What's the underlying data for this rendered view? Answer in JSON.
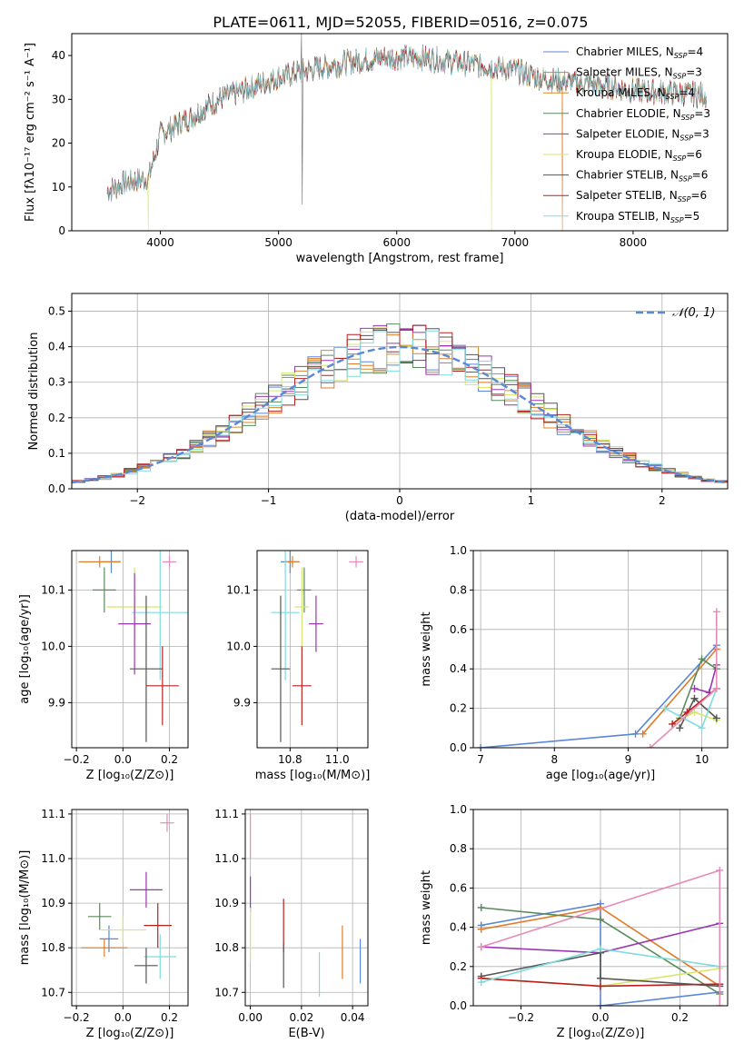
{
  "figure_title": "PLATE=0611, MJD=52055, FIBERID=0516, z=0.075",
  "colors": {
    "Chabrier MILES": "#5b87d6",
    "Salpeter MILES": "#e07b2a",
    "Kroupa MILES": "#d68a2a",
    "Chabrier ELODIE": "#5a8a5a",
    "Salpeter ELODIE": "#9a37b0",
    "Kroupa ELODIE": "#d8e66a",
    "Chabrier STELIB": "#555555",
    "Salpeter STELIB": "#b82020",
    "Kroupa STELIB": "#7fdbe0",
    "extra": "#e88ab8"
  },
  "chart_data": [
    {
      "type": "line",
      "id": "spectrum",
      "title": "PLATE=0611, MJD=52055, FIBERID=0516, z=0.075",
      "xlabel": "wavelength [Angstrom, rest frame]",
      "ylabel": "Flux [fλ10⁻¹⁷ erg cm⁻² s⁻¹ A⁻¹]",
      "xlim": [
        3250,
        8800
      ],
      "ylim": [
        0,
        45
      ],
      "xticks": [
        4000,
        5000,
        6000,
        7000,
        8000
      ],
      "yticks": [
        0,
        10,
        20,
        30,
        40
      ],
      "grid": false,
      "legend_position": "top-right",
      "series": [
        {
          "name": "Chabrier MILES, N_SSP=4"
        },
        {
          "name": "Salpeter MILES, N_SSP=3"
        },
        {
          "name": "Kroupa MILES, N_SSP=4"
        },
        {
          "name": "Chabrier ELODIE, N_SSP=3"
        },
        {
          "name": "Salpeter ELODIE, N_SSP=3"
        },
        {
          "name": "Kroupa ELODIE, N_SSP=6"
        },
        {
          "name": "Chabrier STELIB, N_SSP=6"
        },
        {
          "name": "Salpeter STELIB, N_SSP=6"
        },
        {
          "name": "Kroupa STELIB, N_SSP=5"
        }
      ],
      "continuum_x": [
        3550,
        3700,
        3900,
        4000,
        4200,
        4500,
        4800,
        5000,
        5300,
        5600,
        5900,
        6200,
        6500,
        6800,
        7000,
        7200,
        7400,
        7600,
        7800,
        8000,
        8300,
        8600
      ],
      "continuum_y": [
        9,
        11,
        12,
        22,
        25,
        30,
        33,
        35,
        37,
        38.5,
        39.5,
        39.5,
        38.5,
        37.5,
        36.5,
        35,
        34,
        33.5,
        33,
        32,
        31.5,
        31
      ]
    },
    {
      "type": "bar",
      "id": "residual-histogram",
      "xlabel": "(data-model)/error",
      "ylabel": "Normed distribution",
      "xlim": [
        -2.5,
        2.5
      ],
      "ylim": [
        0,
        0.55
      ],
      "xticks": [
        -2,
        -1,
        0,
        1,
        2
      ],
      "yticks": [
        0.0,
        0.1,
        0.2,
        0.3,
        0.4,
        0.5
      ],
      "grid": true,
      "legend_position": "top-right",
      "legend": [
        "𝒩(0, 1)"
      ],
      "bin_width": 0.1,
      "bin_start": -2.5,
      "n_bins": 50
    },
    {
      "type": "scatter",
      "id": "age-vs-Z",
      "xlabel": "Z [log₁₀(Z/Z⊙)]",
      "ylabel": "age  [log₁₀(age/yr)]",
      "xlim": [
        -0.22,
        0.28
      ],
      "ylim": [
        9.82,
        10.17
      ],
      "xticks": [
        -0.2,
        0.0,
        0.2
      ],
      "yticks": [
        9.9,
        10.0,
        10.1
      ],
      "grid": true,
      "points": [
        {
          "model": "Chabrier MILES",
          "x": -0.05,
          "y": 10.15,
          "xerr": 0.04,
          "yerr": 0.02
        },
        {
          "model": "Salpeter MILES",
          "x": -0.1,
          "y": 10.15,
          "xerr": 0.09,
          "yerr": 0.01
        },
        {
          "model": "Chabrier ELODIE",
          "x": -0.08,
          "y": 10.1,
          "xerr": 0.05,
          "yerr": 0.04
        },
        {
          "model": "Kroupa ELODIE",
          "x": 0.05,
          "y": 10.07,
          "xerr": 0.12,
          "yerr": 0.07
        },
        {
          "model": "Kroupa STELIB",
          "x": 0.16,
          "y": 10.06,
          "xerr": 0.12,
          "yerr": 0.12
        },
        {
          "model": "Salpeter ELODIE",
          "x": 0.05,
          "y": 10.04,
          "xerr": 0.07,
          "yerr": 0.09
        },
        {
          "model": "Chabrier STELIB",
          "x": 0.1,
          "y": 9.96,
          "xerr": 0.07,
          "yerr": 0.13
        },
        {
          "model": "Salpeter STELIB",
          "x": 0.17,
          "y": 9.93,
          "xerr": 0.07,
          "yerr": 0.07
        },
        {
          "model": "extra",
          "x": 0.2,
          "y": 10.15,
          "xerr": 0.03,
          "yerr": 0.01
        }
      ]
    },
    {
      "type": "scatter",
      "id": "age-vs-mass",
      "xlabel": "mass [log₁₀(M/M⊙)]",
      "ylabel": "",
      "xlim": [
        10.66,
        11.13
      ],
      "ylim": [
        9.82,
        10.17
      ],
      "xticks": [
        10.8,
        11.0
      ],
      "yticks": [
        9.9,
        10.0,
        10.1
      ],
      "grid": true,
      "points": [
        {
          "model": "Chabrier MILES",
          "x": 10.8,
          "y": 10.15,
          "xerr": 0.04,
          "yerr": 0.02
        },
        {
          "model": "Salpeter MILES",
          "x": 10.81,
          "y": 10.15,
          "xerr": 0.03,
          "yerr": 0.01
        },
        {
          "model": "Chabrier ELODIE",
          "x": 10.86,
          "y": 10.1,
          "xerr": 0.03,
          "yerr": 0.04
        },
        {
          "model": "Kroupa ELODIE",
          "x": 10.85,
          "y": 10.07,
          "xerr": 0.03,
          "yerr": 0.07
        },
        {
          "model": "Kroupa STELIB",
          "x": 10.78,
          "y": 10.06,
          "xerr": 0.06,
          "yerr": 0.12
        },
        {
          "model": "Salpeter ELODIE",
          "x": 10.91,
          "y": 10.04,
          "xerr": 0.03,
          "yerr": 0.05
        },
        {
          "model": "Chabrier STELIB",
          "x": 10.76,
          "y": 9.96,
          "xerr": 0.04,
          "yerr": 0.13
        },
        {
          "model": "Salpeter STELIB",
          "x": 10.85,
          "y": 9.93,
          "xerr": 0.04,
          "yerr": 0.07
        },
        {
          "model": "extra",
          "x": 11.08,
          "y": 10.15,
          "xerr": 0.03,
          "yerr": 0.01
        }
      ]
    },
    {
      "type": "line",
      "id": "mass-weight-vs-age",
      "xlabel": "age  [log₁₀(age/yr)]",
      "ylabel": "mass weight",
      "xlim": [
        6.9,
        10.35
      ],
      "ylim": [
        0,
        1
      ],
      "xticks": [
        7,
        8,
        9,
        10
      ],
      "yticks": [
        0.0,
        0.2,
        0.4,
        0.6,
        0.8,
        1.0
      ],
      "grid": true,
      "series": [
        {
          "model": "Chabrier MILES",
          "x": [
            7.0,
            9.1,
            10.2
          ],
          "y": [
            0.0,
            0.07,
            0.52
          ]
        },
        {
          "model": "Salpeter MILES",
          "x": [
            9.2,
            10.2
          ],
          "y": [
            0.07,
            0.5
          ]
        },
        {
          "model": "Chabrier ELODIE",
          "x": [
            9.7,
            10.0,
            10.2
          ],
          "y": [
            0.15,
            0.45,
            0.4
          ]
        },
        {
          "model": "Salpeter ELODIE",
          "x": [
            9.9,
            10.1,
            10.2
          ],
          "y": [
            0.3,
            0.28,
            0.42
          ]
        },
        {
          "model": "Kroupa ELODIE",
          "x": [
            9.6,
            9.9,
            10.2
          ],
          "y": [
            0.12,
            0.18,
            0.14
          ]
        },
        {
          "model": "Chabrier STELIB",
          "x": [
            9.7,
            9.9,
            10.2
          ],
          "y": [
            0.1,
            0.25,
            0.15
          ]
        },
        {
          "model": "Salpeter STELIB",
          "x": [
            9.6,
            9.8,
            10.2
          ],
          "y": [
            0.12,
            0.18,
            0.3
          ]
        },
        {
          "model": "Kroupa STELIB",
          "x": [
            9.5,
            10.0,
            10.2
          ],
          "y": [
            0.2,
            0.1,
            0.3
          ]
        },
        {
          "model": "extra",
          "x": [
            9.3,
            10.2,
            10.2
          ],
          "y": [
            0.0,
            0.3,
            0.69
          ]
        }
      ]
    },
    {
      "type": "scatter",
      "id": "mass-vs-Z",
      "xlabel": "Z [log₁₀(Z/Z⊙)]",
      "ylabel": "mass [log₁₀(M/M⊙)]",
      "xlim": [
        -0.22,
        0.28
      ],
      "ylim": [
        10.67,
        11.11
      ],
      "xticks": [
        -0.2,
        0.0,
        0.2
      ],
      "yticks": [
        10.7,
        10.8,
        10.9,
        11.0,
        11.1
      ],
      "grid": true,
      "points": [
        {
          "model": "Chabrier MILES",
          "x": -0.06,
          "y": 10.82,
          "xerr": 0.04,
          "yerr": 0.03
        },
        {
          "model": "Salpeter MILES",
          "x": -0.08,
          "y": 10.8,
          "xerr": 0.1,
          "yerr": 0.02
        },
        {
          "model": "Chabrier ELODIE",
          "x": -0.1,
          "y": 10.87,
          "xerr": 0.05,
          "yerr": 0.03
        },
        {
          "model": "Kroupa ELODIE",
          "x": 0.0,
          "y": 10.84,
          "xerr": 0.1,
          "yerr": 0.03
        },
        {
          "model": "Salpeter ELODIE",
          "x": 0.1,
          "y": 10.93,
          "xerr": 0.07,
          "yerr": 0.04
        },
        {
          "model": "Salpeter STELIB",
          "x": 0.15,
          "y": 10.85,
          "xerr": 0.06,
          "yerr": 0.05
        },
        {
          "model": "Kroupa STELIB",
          "x": 0.16,
          "y": 10.78,
          "xerr": 0.07,
          "yerr": 0.05
        },
        {
          "model": "Chabrier STELIB",
          "x": 0.1,
          "y": 10.76,
          "xerr": 0.05,
          "yerr": 0.04
        },
        {
          "model": "extra",
          "x": 0.19,
          "y": 11.08,
          "xerr": 0.03,
          "yerr": 0.02
        }
      ]
    },
    {
      "type": "scatter",
      "id": "mass-vs-EBV",
      "xlabel": "E(B-V)",
      "ylabel": "",
      "xlim": [
        -0.002,
        0.046
      ],
      "ylim": [
        10.67,
        11.11
      ],
      "xticks": [
        0.0,
        0.02,
        0.04
      ],
      "yticks": [
        10.7,
        10.8,
        10.9,
        11.0,
        11.1
      ],
      "grid": true,
      "points": [
        {
          "model": "Chabrier MILES",
          "x": 0.043,
          "y": 10.77,
          "yerr": 0.05
        },
        {
          "model": "Salpeter MILES",
          "x": 0.036,
          "y": 10.79,
          "yerr": 0.06
        },
        {
          "model": "Kroupa STELIB",
          "x": 0.027,
          "y": 10.74,
          "yerr": 0.05
        },
        {
          "model": "Salpeter STELIB",
          "x": 0.013,
          "y": 10.85,
          "yerr": 0.06
        },
        {
          "model": "Chabrier STELIB",
          "x": 0.013,
          "y": 10.76,
          "yerr": 0.05
        },
        {
          "model": "Salpeter ELODIE",
          "x": 0.0,
          "y": 10.92,
          "yerr": 0.04
        },
        {
          "model": "Kroupa ELODIE",
          "x": 0.0,
          "y": 10.83,
          "yerr": 0.06
        },
        {
          "model": "extra",
          "x": 0.0,
          "y": 11.05,
          "yerr": 0.05
        }
      ]
    },
    {
      "type": "line",
      "id": "mass-weight-vs-Z",
      "xlabel": "Z [log₁₀(Z/Z⊙)]",
      "ylabel": "mass weight",
      "xlim": [
        -0.32,
        0.32
      ],
      "ylim": [
        0,
        1
      ],
      "xticks": [
        -0.2,
        0.0,
        0.2
      ],
      "yticks": [
        0.0,
        0.2,
        0.4,
        0.6,
        0.8,
        1.0
      ],
      "grid": true,
      "series": [
        {
          "model": "Chabrier MILES",
          "x": [
            -0.3,
            0.0,
            0.0,
            0.3
          ],
          "y": [
            0.41,
            0.52,
            0.0,
            0.07
          ]
        },
        {
          "model": "Salpeter MILES",
          "x": [
            -0.3,
            0.0,
            0.3
          ],
          "y": [
            0.39,
            0.5,
            0.1
          ]
        },
        {
          "model": "Chabrier ELODIE",
          "x": [
            -0.3,
            0.0,
            0.3
          ],
          "y": [
            0.5,
            0.44,
            0.06
          ]
        },
        {
          "model": "Salpeter ELODIE",
          "x": [
            -0.3,
            0.0,
            0.3
          ],
          "y": [
            0.3,
            0.27,
            0.42
          ]
        },
        {
          "model": "Kroupa ELODIE",
          "x": [
            -0.3,
            0.0,
            0.3
          ],
          "y": [
            0.14,
            0.1,
            0.19
          ]
        },
        {
          "model": "Chabrier STELIB",
          "x": [
            -0.3,
            0.0,
            0.0,
            0.3
          ],
          "y": [
            0.15,
            0.27,
            0.14,
            0.1
          ]
        },
        {
          "model": "Salpeter STELIB",
          "x": [
            -0.3,
            0.0,
            0.3
          ],
          "y": [
            0.14,
            0.1,
            0.11
          ]
        },
        {
          "model": "Kroupa STELIB",
          "x": [
            -0.3,
            0.0,
            0.3
          ],
          "y": [
            0.12,
            0.29,
            0.2
          ]
        },
        {
          "model": "extra",
          "x": [
            -0.3,
            0.3,
            0.3
          ],
          "y": [
            0.3,
            0.69,
            0.0
          ]
        }
      ]
    }
  ]
}
